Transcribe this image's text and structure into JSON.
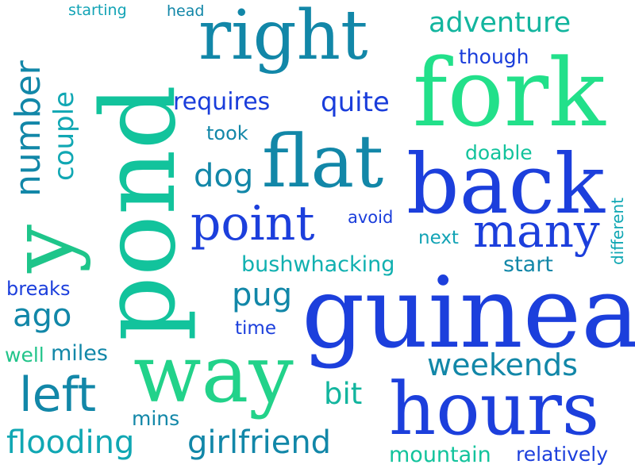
{
  "palette": {
    "blue": "#1a3ddb",
    "royal": "#1c45e0",
    "teal": "#1287a8",
    "cyan": "#10a7b3",
    "mint": "#22d28a",
    "green": "#12c39c"
  },
  "words": {
    "starting": "starting",
    "head": "head",
    "right": "right",
    "adventure": "adventure",
    "though": "though",
    "fork": "fork",
    "requires": "requires",
    "quite": "quite",
    "took": "took",
    "doable": "doable",
    "flat": "flat",
    "back": "back",
    "dog": "dog",
    "different": "different",
    "point": "point",
    "avoid": "avoid",
    "next": "next",
    "many": "many",
    "bushwhacking": "bushwhacking",
    "start": "start",
    "breaks": "breaks",
    "ago": "ago",
    "pug": "pug",
    "time": "time",
    "guinea": "guinea",
    "well": "well",
    "miles": "miles",
    "way": "way",
    "weekends": "weekends",
    "left": "left",
    "bit": "bit",
    "hours": "hours",
    "mins": "mins",
    "flooding": "flooding",
    "girlfriend": "girlfriend",
    "mountain": "mountain",
    "relatively": "relatively",
    "pond": "pond",
    "y": "y",
    "number": "number",
    "couple": "couple"
  }
}
